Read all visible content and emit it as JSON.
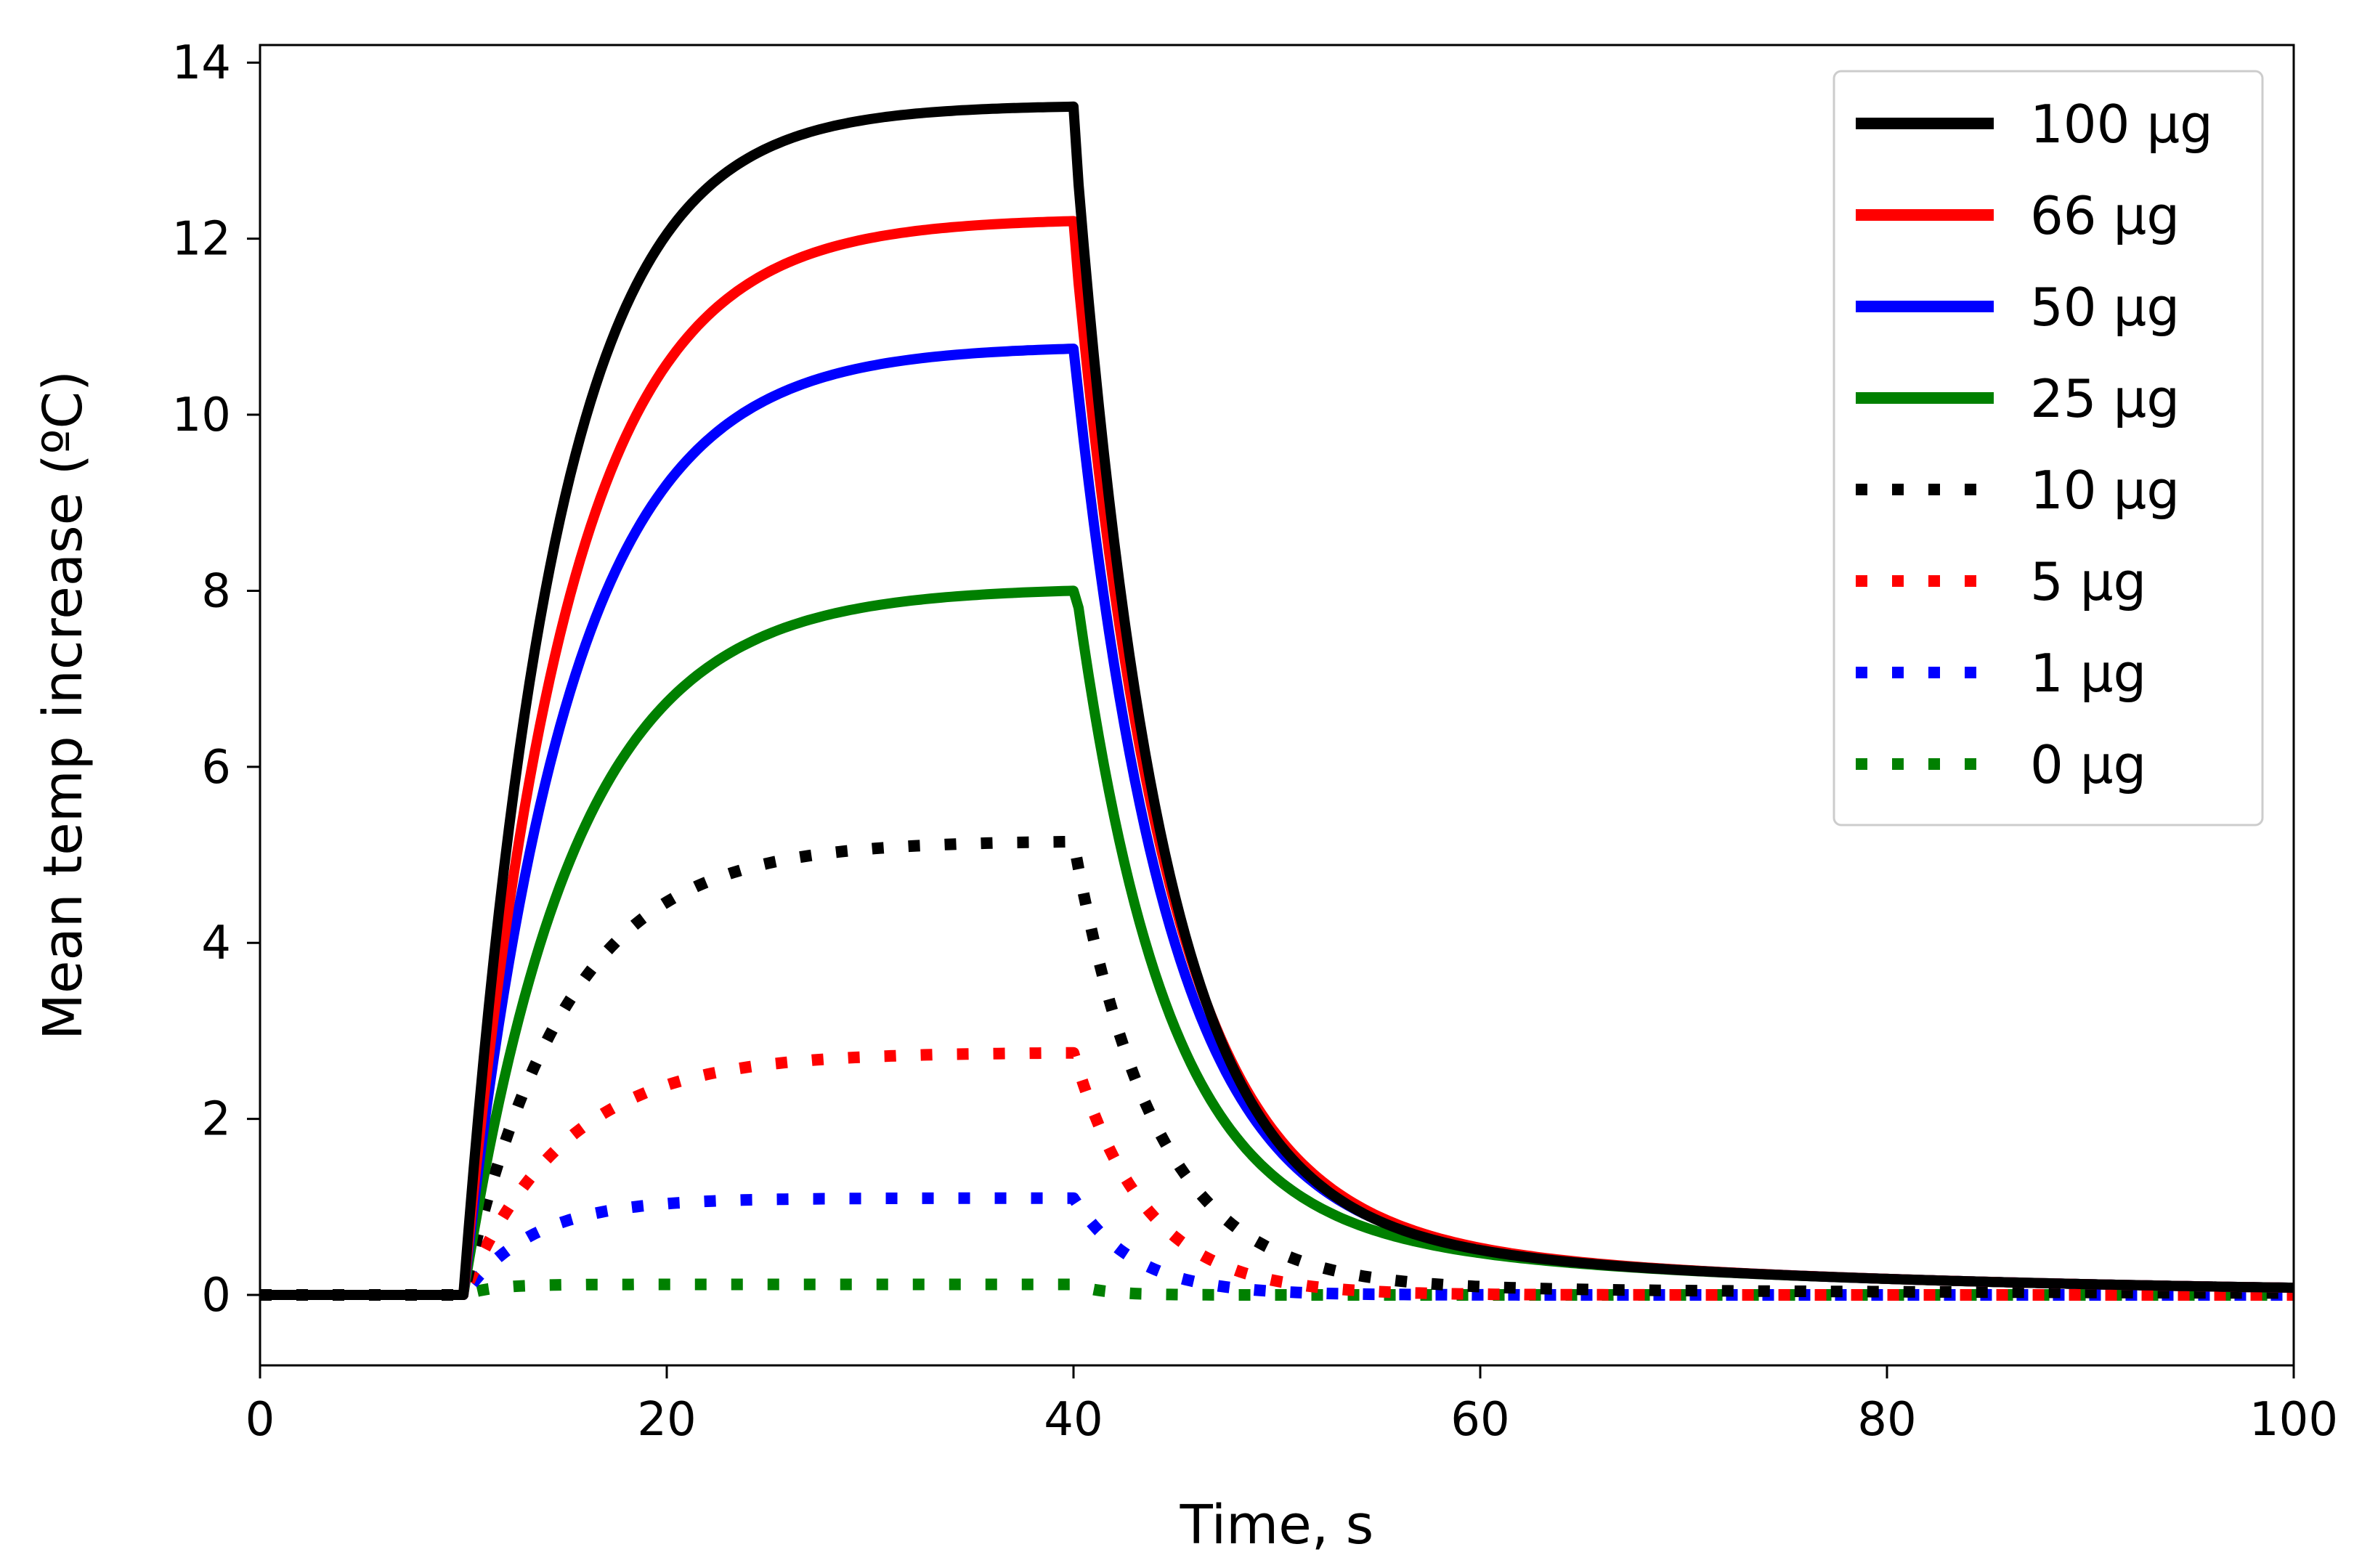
{
  "chart_data": {
    "type": "line",
    "title": "",
    "xlabel": "Time, s",
    "ylabel": "Mean temp increase (ºC)",
    "xlim": [
      0,
      100
    ],
    "ylim": [
      -0.8,
      14.2
    ],
    "xticks": [
      0,
      20,
      40,
      60,
      80,
      100
    ],
    "yticks": [
      0,
      2,
      4,
      6,
      8,
      10,
      12,
      14
    ],
    "grid": false,
    "legend_position": "top-right",
    "heating": {
      "start_s": 10,
      "end_s": 40
    },
    "series": [
      {
        "name": "100 µg",
        "color": "#000000",
        "style": "solid",
        "plateau": 13.5,
        "tau_rise": 4.5,
        "tau_decay": 4.2,
        "tail": 0.12
      },
      {
        "name": "66 µg",
        "color": "#ff0000",
        "style": "solid",
        "plateau": 12.2,
        "tau_rise": 5.0,
        "tau_decay": 4.5,
        "tail": 0.15
      },
      {
        "name": "50 µg",
        "color": "#0000ff",
        "style": "solid",
        "plateau": 10.75,
        "tau_rise": 5.2,
        "tau_decay": 4.5,
        "tail": 0.14
      },
      {
        "name": "25 µg",
        "color": "#008000",
        "style": "solid",
        "plateau": 8.0,
        "tau_rise": 5.5,
        "tau_decay": 4.3,
        "tail": 0.12
      },
      {
        "name": "10 µg",
        "color": "#000000",
        "style": "dotted",
        "plateau": 5.15,
        "tau_rise": 5.0,
        "tau_decay": 4.0,
        "tail": 0.1
      },
      {
        "name": "5 µg",
        "color": "#ff0000",
        "style": "dotted",
        "plateau": 2.75,
        "tau_rise": 5.0,
        "tau_decay": 3.5,
        "tail": 0.0
      },
      {
        "name": "1 µg",
        "color": "#0000ff",
        "style": "dotted",
        "plateau": 1.1,
        "tau_rise": 3.5,
        "tau_decay": 3.0,
        "tail": 0.0
      },
      {
        "name": "0 µg",
        "color": "#008000",
        "style": "dotted",
        "plateau": 0.12,
        "tau_rise": 1.5,
        "tau_decay": 1.5,
        "tail": 0.0
      }
    ]
  }
}
